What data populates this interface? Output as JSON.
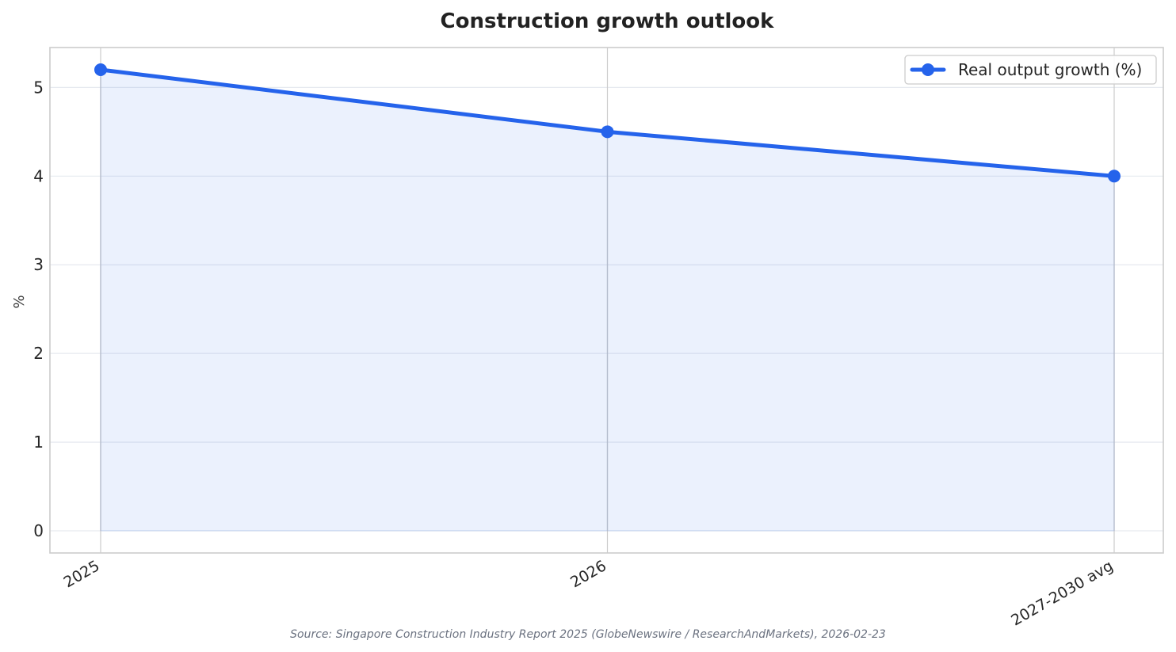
{
  "chart_data": {
    "type": "area",
    "title": "Construction growth outlook",
    "xlabel": "",
    "ylabel": "%",
    "categories": [
      "2025",
      "2026",
      "2027-2030 avg"
    ],
    "series": [
      {
        "name": "Real output growth (%)",
        "values": [
          5.2,
          4.5,
          4.0
        ],
        "color": "#2563eb",
        "fill_color": "#2563eb"
      }
    ],
    "yticks": [
      "0",
      "1",
      "2",
      "3",
      "4",
      "5"
    ],
    "ylim": [
      -0.25,
      5.45
    ],
    "grid": true,
    "legend_position": "upper right",
    "source": "Source: Singapore Construction Industry Report 2025 (GlobeNewswire / ResearchAndMarkets), 2026-02-23"
  },
  "colors": {
    "axis_frame": "#cccccc",
    "grid": "#e6e9ef",
    "x_grid": "#cccccc"
  }
}
